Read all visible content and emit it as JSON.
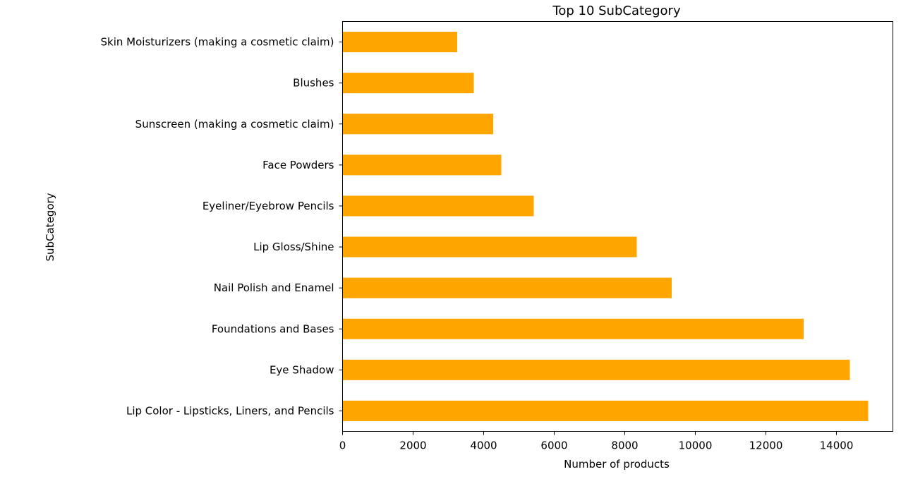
{
  "chart_data": {
    "type": "bar",
    "orientation": "horizontal",
    "title": "Top 10 SubCategory",
    "xlabel": "Number of products",
    "ylabel": "SubCategory",
    "categories": [
      "Lip Color - Lipsticks, Liners, and Pencils",
      "Eye Shadow",
      "Foundations and Bases",
      "Nail Polish and Enamel",
      "Lip Gloss/Shine",
      "Eyeliner/Eyebrow Pencils",
      "Face Powders",
      "Sunscreen (making a cosmetic claim) ",
      "Blushes ",
      "Skin Moisturizers (making a cosmetic claim)"
    ],
    "values": [
      14900,
      14380,
      13070,
      9330,
      8340,
      5420,
      4500,
      4270,
      3720,
      3250
    ],
    "xlim": [
      0,
      15600
    ],
    "xticks": [
      0,
      2000,
      4000,
      6000,
      8000,
      10000,
      12000,
      14000
    ],
    "grid": false,
    "bar_color": "#ffa500"
  }
}
